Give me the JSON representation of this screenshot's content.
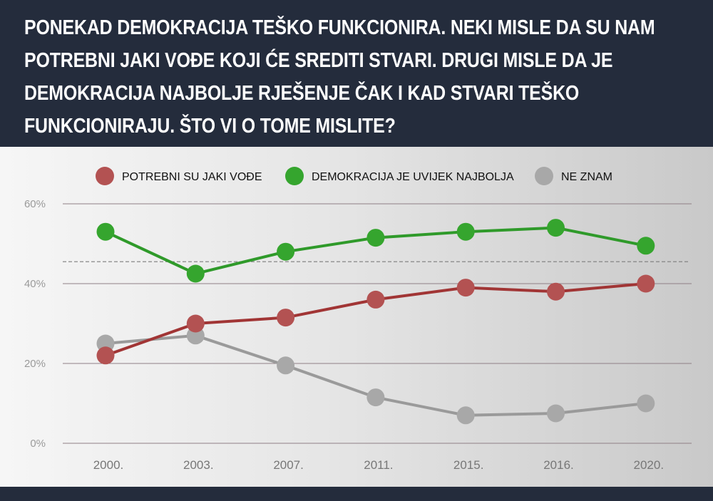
{
  "header": {
    "title": "PONEKAD DEMOKRACIJA TEŠKO FUNKCIONIRA. NEKI MISLE DA SU NAM POTREBNI JAKI VOĐE KOJI ĆE SREDITI STVARI. DRUGI MISLE DA JE DEMOKRACIJA NAJBOLJE RJEŠENJE ČAK I KAD STVARI TEŠKO FUNKCIONIRAJU. ŠTO VI O TOME MISLITE?"
  },
  "colors": {
    "header_bg": "#242c3c",
    "red": "#a13535",
    "red_marker": "#b35252",
    "green": "#2f9a2a",
    "green_marker": "#35a52e",
    "gray": "#9a9a9a",
    "gray_marker": "#a8a8a8"
  },
  "chart_data": {
    "type": "line",
    "title": "",
    "xlabel": "",
    "ylabel": "",
    "categories": [
      "2000.",
      "2003.",
      "2007.",
      "2011.",
      "2015.",
      "2016.",
      "2020."
    ],
    "ylim": [
      0,
      60
    ],
    "y_ticks": [
      "0%",
      "20%",
      "40%",
      "60%"
    ],
    "y_tick_values": [
      0,
      20,
      40,
      60
    ],
    "reference_line": 45.5,
    "grid": true,
    "legend_position": "top",
    "series": [
      {
        "name": "POTREBNI SU JAKI VOĐE",
        "color_key": "red",
        "values": [
          22,
          30,
          31.5,
          36,
          39,
          38,
          40
        ]
      },
      {
        "name": "DEMOKRACIJA JE UVIJEK NAJBOLJA",
        "color_key": "green",
        "values": [
          53,
          42.5,
          48,
          51.5,
          53,
          54,
          49.5
        ]
      },
      {
        "name": "NE ZNAM",
        "color_key": "gray",
        "values": [
          25,
          27,
          19.5,
          11.5,
          7,
          7.5,
          10
        ]
      }
    ]
  }
}
